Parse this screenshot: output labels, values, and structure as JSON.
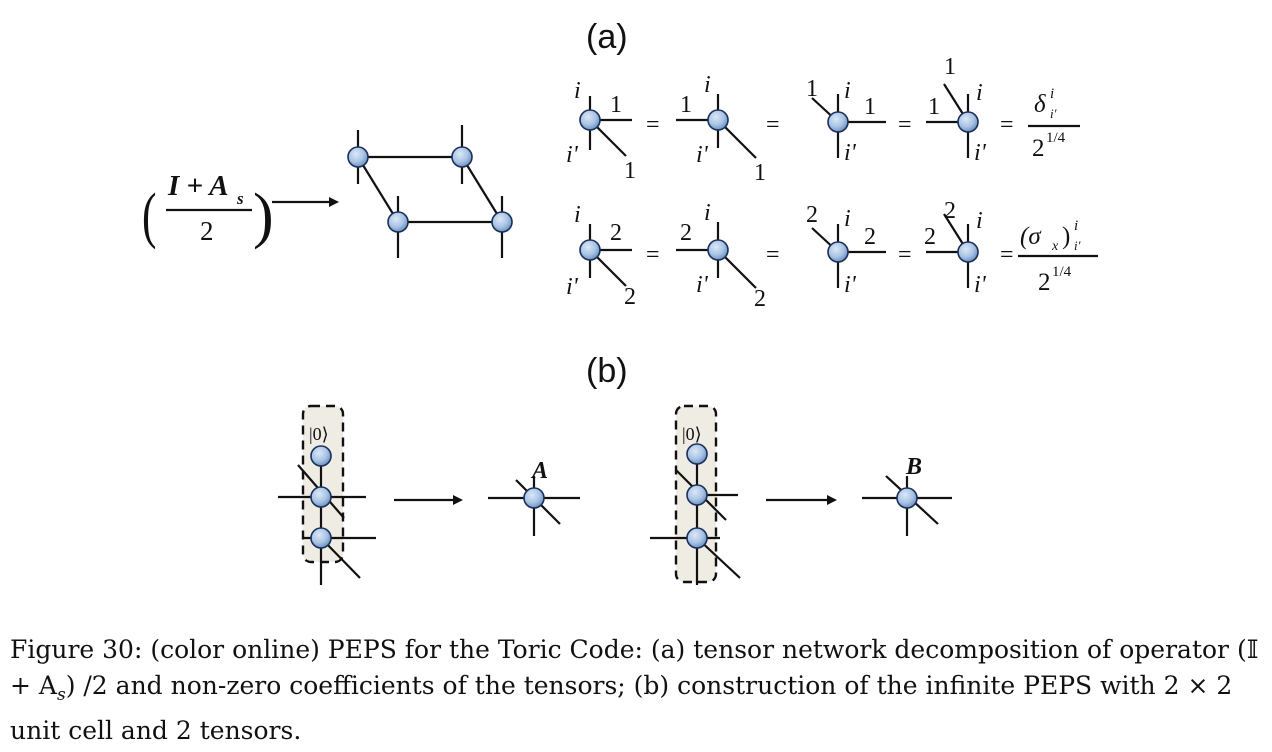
{
  "figure": {
    "panel_a_label": "(a)",
    "panel_b_label": "(b)",
    "operator": {
      "numerator": "I + A",
      "subscript": "s",
      "denominator": "2"
    },
    "row1": {
      "edge_value": "1",
      "phys_top": "i",
      "phys_bottom": "i'",
      "rhs_numerator": "δ",
      "rhs_super": "i",
      "rhs_sub": "i'",
      "rhs_denominator": "2",
      "rhs_denominator_exp": "1/4"
    },
    "row2": {
      "edge_value": "2",
      "phys_top": "i",
      "phys_bottom": "i'",
      "rhs_numerator": "(σ",
      "rhs_sigma_sub": "x",
      "rhs_close": ")",
      "rhs_super": "i",
      "rhs_sub": "i'",
      "rhs_denominator": "2",
      "rhs_denominator_exp": "1/4"
    },
    "equals_sign": "=",
    "ket": "|0⟩",
    "tensor_a": "A",
    "tensor_b": "B"
  },
  "caption": {
    "text": "Figure 30: (color online) PEPS for the Toric Code: (a) tensor network decomposition of operator (𝕀 + A",
    "subscript": "s",
    "text_cont": ") /2 and non-zero coefficients of the tensors; (b) construction of the infinite PEPS with 2 × 2 unit cell and 2 tensors."
  },
  "colors": {
    "node_fill": "#a9c4e4",
    "node_stroke": "#1a2f5a",
    "box_fill": "#efece3"
  }
}
